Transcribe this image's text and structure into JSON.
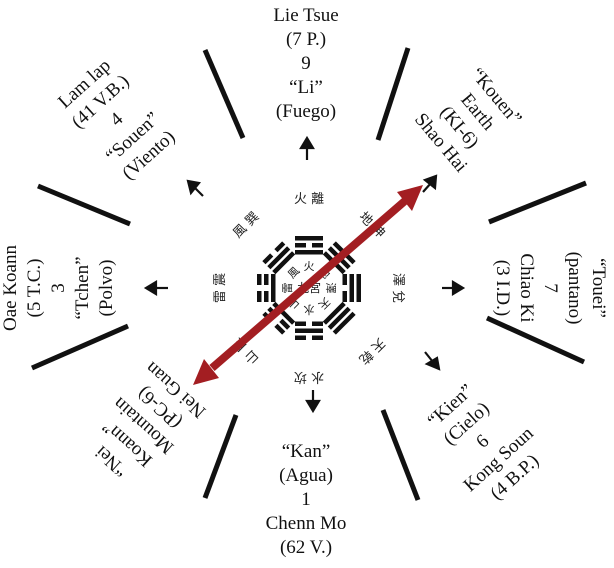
{
  "colors": {
    "arrow": "#a31e22",
    "ink": "#111111"
  },
  "sectors": {
    "top": {
      "lines": [
        "Lie Tsue",
        "(7 P.)",
        "9",
        "“Li”",
        "(Fuego)"
      ]
    },
    "top_left": {
      "lines": [
        "Lam lap",
        "(41 V.B.)",
        "4",
        "“Souen”",
        "(Viento)"
      ]
    },
    "top_right": {
      "lines": [
        "“Kouen”",
        "Earth",
        "(KI-6)",
        "Shao Hai"
      ]
    },
    "left": {
      "lines": [
        "Oae Koann",
        "(5 T.C.)",
        "3",
        "“Tchen”",
        "(Polvo)"
      ]
    },
    "right": {
      "lines": [
        "“Touei”",
        "(pantano)",
        "7",
        "Chiao Ki",
        "(3 I.D.)"
      ]
    },
    "bottom_left": {
      "lines": [
        "“Nei",
        "Koann”",
        "Mountain",
        "(PC-6)",
        "Nei Guan"
      ]
    },
    "bottom_right": {
      "lines": [
        "“Kien”",
        "(Cielo)",
        "6",
        "Kong Soun",
        "(4 B.P.)"
      ]
    },
    "bottom": {
      "lines": [
        "“Kan”",
        "(Agua)",
        "1",
        "Chenn Mo",
        "(62 V.)"
      ]
    }
  },
  "center_glyphs": {
    "n": "火 離",
    "ne": "地 坤",
    "e": "澤 兌",
    "se": "天 乾",
    "s": "水 坎",
    "sw": "山 艮",
    "w": "雷 震",
    "nw": "風 巽",
    "center": "九宮"
  }
}
